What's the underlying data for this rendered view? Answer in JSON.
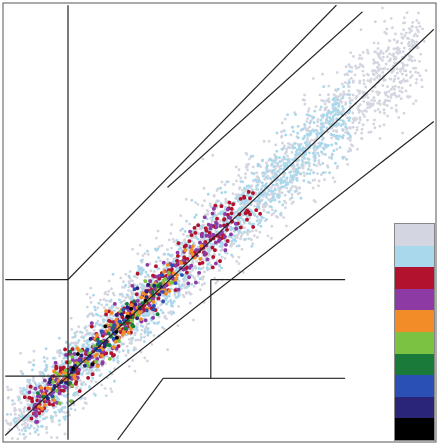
{
  "chart_data": {
    "type": "scatter",
    "title": "",
    "xlabel": "",
    "ylabel": "",
    "xlim": [
      0,
      100
    ],
    "ylim": [
      0,
      100
    ],
    "grid": false,
    "legend_placement": "bottom-right",
    "legend_colors": [
      "#d3d6e0",
      "#a9d8ec",
      "#b3122e",
      "#8e3aa4",
      "#f28c28",
      "#7cc242",
      "#1a7a3a",
      "#2a4fb5",
      "#2b2577",
      "#000000"
    ],
    "reference_lines": [
      {
        "name": "upper-outer",
        "x": [
          15,
          77
        ],
        "y": [
          37,
          99.5
        ]
      },
      {
        "name": "upper-inner",
        "x": [
          38,
          83
        ],
        "y": [
          58,
          98
        ]
      },
      {
        "name": "diagonal",
        "x": [
          0.5,
          99.5
        ],
        "y": [
          1.5,
          94
        ]
      },
      {
        "name": "lower-outer",
        "x": [
          15,
          99.5
        ],
        "y": [
          8,
          73
        ]
      },
      {
        "name": "lower-steep",
        "x": [
          26.5,
          37
        ],
        "y": [
          0.5,
          14.5
        ]
      },
      {
        "name": "vertical-left",
        "x": [
          15,
          15
        ],
        "y": [
          99.5,
          0.5
        ]
      },
      {
        "name": "horizontal-upper-left",
        "x": [
          0.5,
          15
        ],
        "y": [
          37,
          37
        ]
      },
      {
        "name": "horizontal-lower-left",
        "x": [
          0.5,
          15
        ],
        "y": [
          15,
          15
        ]
      },
      {
        "name": "horizontal-upper-right",
        "x": [
          48,
          79
        ],
        "y": [
          37,
          37
        ]
      },
      {
        "name": "vertical-right",
        "x": [
          48,
          48
        ],
        "y": [
          37,
          14.5
        ]
      },
      {
        "name": "horizontal-lower-right",
        "x": [
          37,
          79
        ],
        "y": [
          14.5,
          14.5
        ]
      }
    ],
    "series": [
      {
        "color": "#d3d6e0",
        "count": 2200,
        "spread": 5.2,
        "range": [
          2,
          96
        ]
      },
      {
        "color": "#a9d8ec",
        "count": 1300,
        "spread": 3.8,
        "range": [
          4,
          80
        ]
      },
      {
        "color": "#b3122e",
        "count": 260,
        "spread": 2.6,
        "range": [
          6,
          58
        ]
      },
      {
        "color": "#8e3aa4",
        "count": 220,
        "spread": 2.3,
        "range": [
          6,
          54
        ]
      },
      {
        "color": "#f28c28",
        "count": 110,
        "spread": 2.0,
        "range": [
          8,
          46
        ]
      },
      {
        "color": "#7cc242",
        "count": 45,
        "spread": 1.8,
        "range": [
          10,
          40
        ]
      },
      {
        "color": "#1a7a3a",
        "count": 30,
        "spread": 1.6,
        "range": [
          10,
          38
        ]
      },
      {
        "color": "#2a4fb5",
        "count": 35,
        "spread": 1.8,
        "range": [
          10,
          40
        ]
      },
      {
        "color": "#2b2577",
        "count": 30,
        "spread": 1.6,
        "range": [
          10,
          38
        ]
      },
      {
        "color": "#000000",
        "count": 10,
        "spread": 1.4,
        "range": [
          12,
          34
        ]
      }
    ]
  }
}
